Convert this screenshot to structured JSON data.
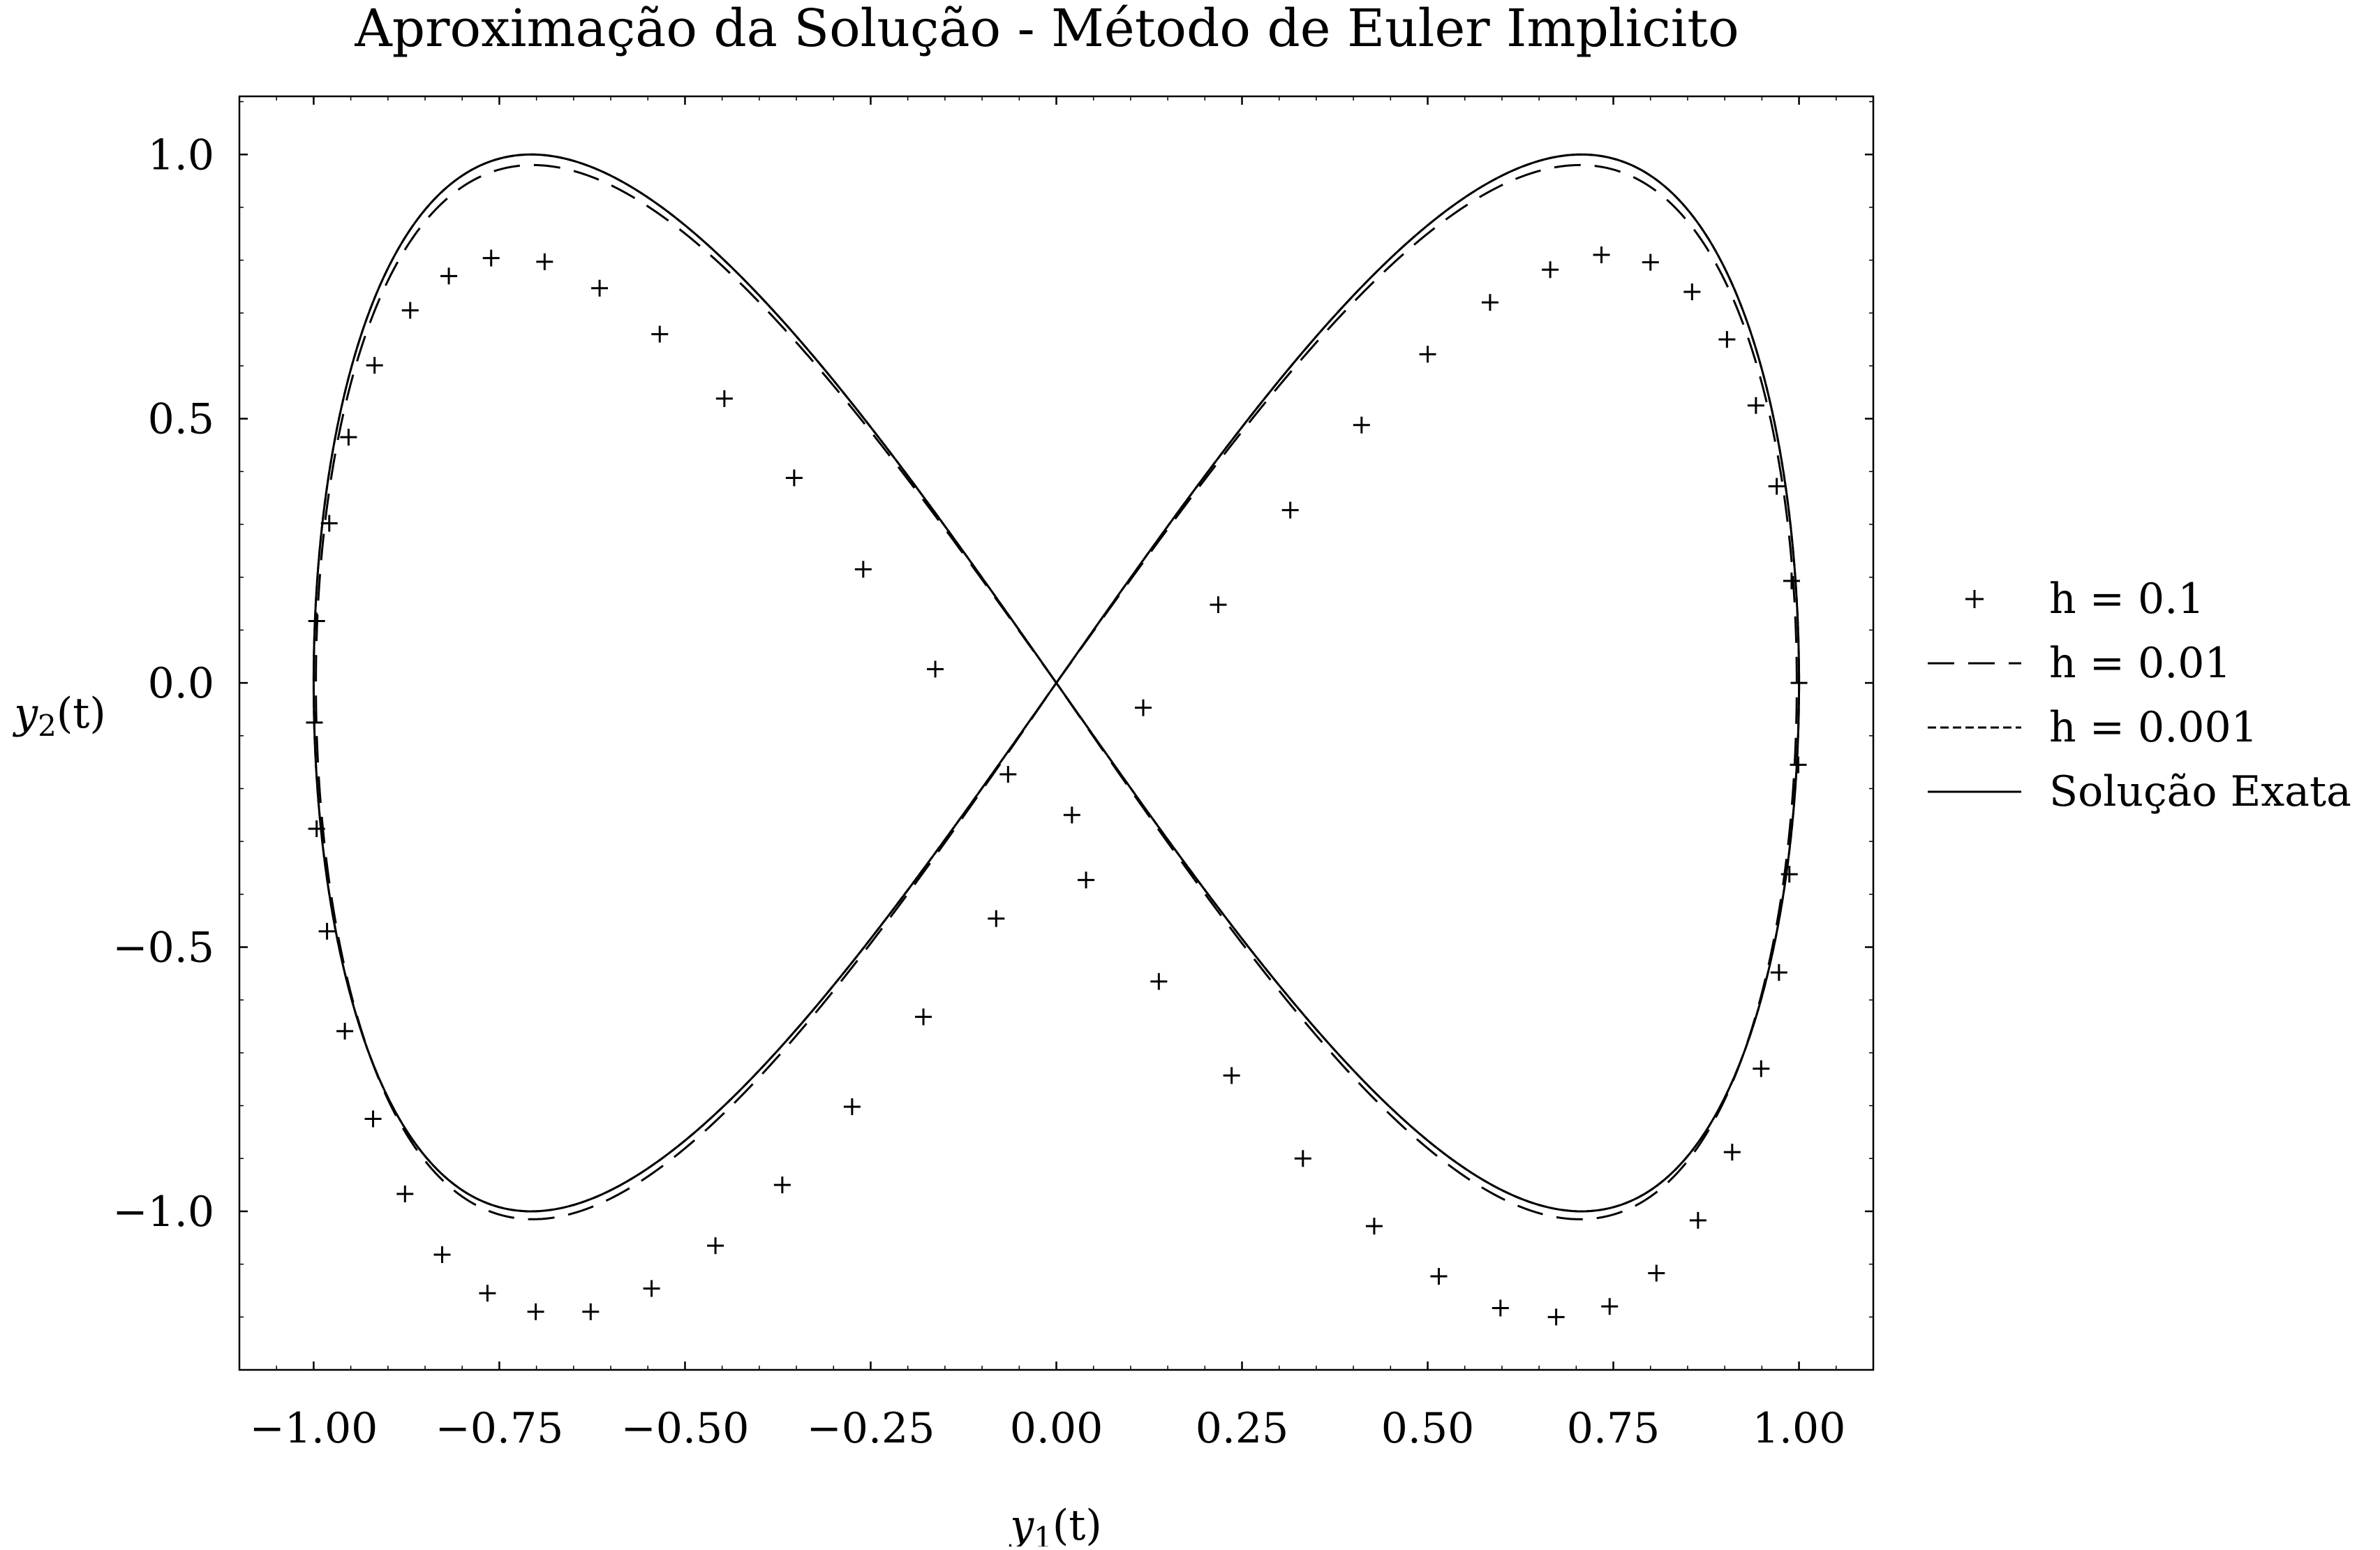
{
  "chart_data": {
    "type": "line",
    "title": "Aproximação da Solução - Método de Euler Implicito",
    "xlabel_main": "y",
    "xlabel_sub": "1",
    "xlabel_tail": "(t)",
    "ylabel_main": "y",
    "ylabel_sub": "2",
    "ylabel_tail": "(t)",
    "xlim": [
      -1.1,
      1.1
    ],
    "ylim": [
      -1.3,
      1.11
    ],
    "xticks": [
      -1.0,
      -0.75,
      -0.5,
      -0.25,
      0.0,
      0.25,
      0.5,
      0.75,
      1.0
    ],
    "xtick_labels": [
      "−1.00",
      "−0.75",
      "−0.50",
      "−0.25",
      "0.00",
      "0.25",
      "0.50",
      "0.75",
      "1.00"
    ],
    "yticks": [
      1.0,
      0.5,
      0.0,
      -0.5,
      -1.0
    ],
    "ytick_labels": [
      "1.0",
      "0.5",
      "0.0",
      "−0.5",
      "−1.0"
    ],
    "grid": false,
    "legend_position": "right-outside",
    "series": [
      {
        "name": "h = 0.1",
        "style": "plus-markers",
        "points": [
          [
            1.0,
            0.0
          ],
          [
            0.999,
            -0.155
          ],
          [
            0.987,
            -0.362
          ],
          [
            0.973,
            -0.548
          ],
          [
            0.949,
            -0.73
          ],
          [
            0.91,
            -0.888
          ],
          [
            0.864,
            -1.017
          ],
          [
            0.808,
            -1.117
          ],
          [
            0.745,
            -1.18
          ],
          [
            0.673,
            -1.2
          ],
          [
            0.598,
            -1.183
          ],
          [
            0.515,
            -1.123
          ],
          [
            0.428,
            -1.028
          ],
          [
            0.332,
            -0.9
          ],
          [
            0.236,
            -0.743
          ],
          [
            0.138,
            -0.565
          ],
          [
            0.04,
            -0.373
          ],
          [
            -0.065,
            -0.173
          ],
          [
            -0.163,
            0.026
          ],
          [
            -0.26,
            0.215
          ],
          [
            -0.353,
            0.388
          ],
          [
            -0.447,
            0.538
          ],
          [
            -0.534,
            0.66
          ],
          [
            -0.615,
            0.747
          ],
          [
            -0.689,
            0.797
          ],
          [
            -0.761,
            0.804
          ],
          [
            -0.818,
            0.77
          ],
          [
            -0.87,
            0.705
          ],
          [
            -0.918,
            0.601
          ],
          [
            -0.953,
            0.465
          ],
          [
            -0.979,
            0.302
          ],
          [
            -0.996,
            0.117
          ],
          [
            -0.999,
            -0.075
          ],
          [
            -0.996,
            -0.276
          ],
          [
            -0.982,
            -0.47
          ],
          [
            -0.958,
            -0.659
          ],
          [
            -0.92,
            -0.825
          ],
          [
            -0.877,
            -0.967
          ],
          [
            -0.827,
            -1.082
          ],
          [
            -0.766,
            -1.155
          ],
          [
            -0.701,
            -1.19
          ],
          [
            -0.627,
            -1.19
          ],
          [
            -0.545,
            -1.146
          ],
          [
            -0.459,
            -1.065
          ],
          [
            -0.369,
            -0.95
          ],
          [
            -0.275,
            -0.802
          ],
          [
            -0.179,
            -0.632
          ],
          [
            -0.081,
            -0.446
          ],
          [
            0.021,
            -0.25
          ],
          [
            0.117,
            -0.047
          ],
          [
            0.218,
            0.148
          ],
          [
            0.315,
            0.327
          ],
          [
            0.411,
            0.488
          ],
          [
            0.5,
            0.622
          ],
          [
            0.584,
            0.72
          ],
          [
            0.665,
            0.782
          ],
          [
            0.734,
            0.81
          ],
          [
            0.8,
            0.796
          ],
          [
            0.856,
            0.74
          ],
          [
            0.903,
            0.65
          ],
          [
            0.942,
            0.525
          ],
          [
            0.97,
            0.372
          ],
          [
            0.99,
            0.193
          ]
        ]
      },
      {
        "name": "h = 0.01",
        "style": "dashed"
      },
      {
        "name": "h = 0.001",
        "style": "dotted"
      },
      {
        "name": "Solução Exata",
        "style": "solid"
      }
    ],
    "curves": {
      "exact": "y1 = sin(t), y2 = sin(2t)",
      "h_0.01_peak": 0.98,
      "h_0.01_trough": -1.015
    }
  }
}
